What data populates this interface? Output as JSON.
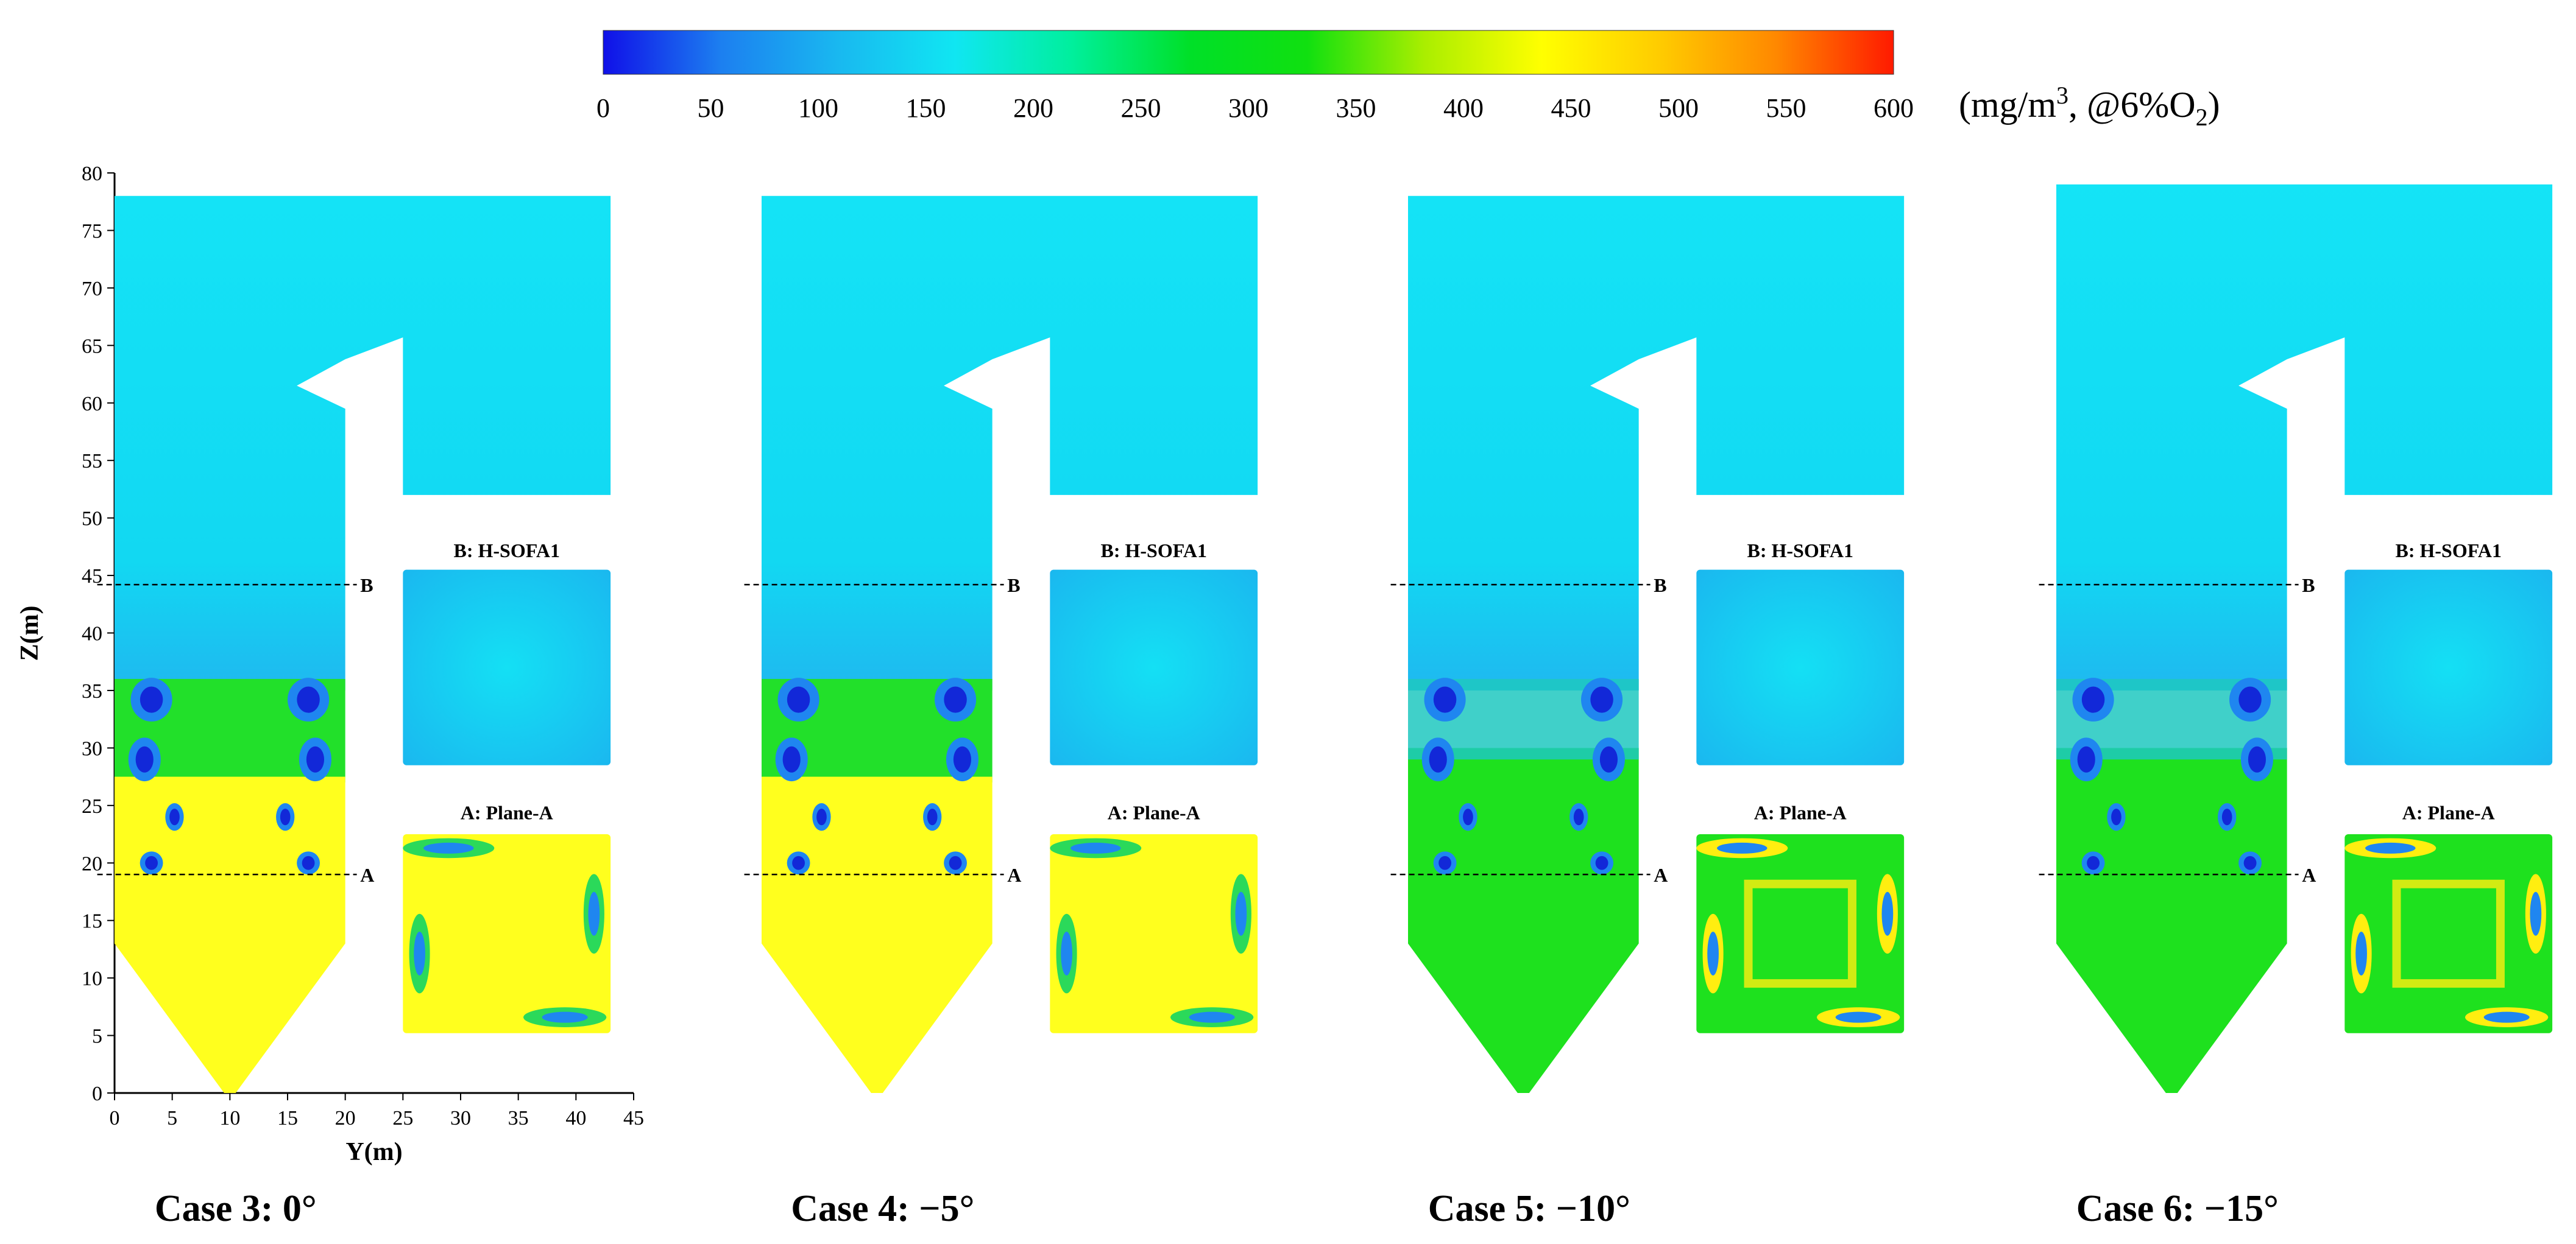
{
  "colorbar": {
    "ticks": [
      0,
      50,
      100,
      150,
      200,
      250,
      300,
      350,
      400,
      450,
      500,
      550,
      600
    ],
    "unit_prefix": "(mg/m",
    "unit_sup": "3",
    "unit_mid": ", @6%O",
    "unit_sub": "2",
    "unit_suffix": ")",
    "stops": [
      "#1010e8",
      "#1c7ff0",
      "#19b8f0",
      "#10e6f2",
      "#00ef9c",
      "#00e028",
      "#10e010",
      "#aaee00",
      "#ffff00",
      "#ffcc00",
      "#ff8800",
      "#ff1a00"
    ]
  },
  "axes": {
    "z_label": "Z(m)",
    "y_label": "Y(m)",
    "z_ticks": [
      0,
      5,
      10,
      15,
      20,
      25,
      30,
      35,
      40,
      45,
      50,
      55,
      60,
      65,
      70,
      75,
      80
    ],
    "y_ticks": [
      0,
      5,
      10,
      15,
      20,
      25,
      30,
      35,
      40,
      45
    ]
  },
  "section_lines": {
    "A": {
      "label": "A",
      "z": 19
    },
    "B": {
      "label": "B",
      "z": 44.2
    }
  },
  "cases": [
    {
      "title": "Case 3: 0°",
      "inset_top": "B: H-SOFA1",
      "inset_bottom": "A: Plane-A",
      "regime": "high"
    },
    {
      "title": "Case 4: −5°",
      "inset_top": "B: H-SOFA1",
      "inset_bottom": "A: Plane-A",
      "regime": "high"
    },
    {
      "title": "Case 5: −10°",
      "inset_top": "B: H-SOFA1",
      "inset_bottom": "A: Plane-A",
      "regime": "low"
    },
    {
      "title": "Case 6: −15°",
      "inset_top": "B: H-SOFA1",
      "inset_bottom": "A: Plane-A",
      "regime": "low"
    }
  ],
  "colors": {
    "upper_field": "#10e2f4",
    "hopper_high": "#ffff1e",
    "hopper_low": "#1ee11e",
    "vortex_dark": "#1228d8",
    "vortex_mid": "#1f86f0"
  },
  "chart_data": {
    "type": "heatmap",
    "quantity_unit": "mg/m3, @6%O2",
    "colorbar_range": [
      0,
      600
    ],
    "xlabel": "Y(m)",
    "ylabel": "Z(m)",
    "xlim": [
      0,
      45
    ],
    "ylim": [
      0,
      80
    ],
    "section_planes": [
      {
        "name": "A",
        "z": 19
      },
      {
        "name": "B",
        "z": 44.2
      }
    ],
    "cases": [
      "Case 3: 0°",
      "Case 4: −5°",
      "Case 5: −10°",
      "Case 6: −15°"
    ]
  }
}
